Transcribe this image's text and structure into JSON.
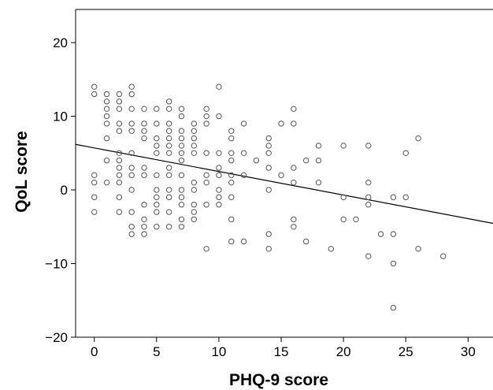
{
  "chart_data": {
    "type": "scatter",
    "xlabel": "PHQ-9 score",
    "ylabel": "QoL score",
    "xlim": [
      -1.5,
      32
    ],
    "ylim": [
      -20,
      24.5
    ],
    "xticks": [
      0,
      5,
      10,
      15,
      20,
      25,
      30
    ],
    "yticks": [
      -20,
      -10,
      0,
      10,
      20
    ],
    "xtick_labels": [
      "0",
      "5",
      "10",
      "15",
      "20",
      "25",
      "30"
    ],
    "ytick_labels": [
      "−20",
      "−10",
      "0",
      "10",
      "20"
    ],
    "grid": false,
    "legend": "none",
    "marker_color": "#555555",
    "line_color": "#000000",
    "fit_line": {
      "intercept": 5.7,
      "slope": -0.32
    },
    "points": [
      [
        0,
        14
      ],
      [
        0,
        13
      ],
      [
        0,
        2
      ],
      [
        0,
        1
      ],
      [
        0,
        -1
      ],
      [
        0,
        -3
      ],
      [
        1,
        13
      ],
      [
        1,
        12
      ],
      [
        1,
        11
      ],
      [
        1,
        10
      ],
      [
        1,
        9
      ],
      [
        1,
        7
      ],
      [
        1,
        4
      ],
      [
        1,
        1
      ],
      [
        2,
        13
      ],
      [
        2,
        12
      ],
      [
        2,
        11
      ],
      [
        2,
        9
      ],
      [
        2,
        8
      ],
      [
        2,
        5
      ],
      [
        2,
        4
      ],
      [
        2,
        3
      ],
      [
        2,
        2
      ],
      [
        2,
        1
      ],
      [
        2,
        -1
      ],
      [
        2,
        -3
      ],
      [
        3,
        14
      ],
      [
        3,
        13
      ],
      [
        3,
        11
      ],
      [
        3,
        9
      ],
      [
        3,
        8
      ],
      [
        3,
        5
      ],
      [
        3,
        3
      ],
      [
        3,
        2
      ],
      [
        3,
        0
      ],
      [
        3,
        -3
      ],
      [
        3,
        -5
      ],
      [
        3,
        -6
      ],
      [
        4,
        11
      ],
      [
        4,
        9
      ],
      [
        4,
        8
      ],
      [
        4,
        7
      ],
      [
        4,
        3
      ],
      [
        4,
        2
      ],
      [
        4,
        -2
      ],
      [
        4,
        -4
      ],
      [
        4,
        -5
      ],
      [
        4,
        -6
      ],
      [
        5,
        11
      ],
      [
        5,
        9
      ],
      [
        5,
        7
      ],
      [
        5,
        6
      ],
      [
        5,
        5
      ],
      [
        5,
        2
      ],
      [
        5,
        0
      ],
      [
        5,
        -1
      ],
      [
        5,
        -2
      ],
      [
        5,
        -3
      ],
      [
        5,
        -5
      ],
      [
        6,
        12
      ],
      [
        6,
        11
      ],
      [
        6,
        9
      ],
      [
        6,
        8
      ],
      [
        6,
        7
      ],
      [
        6,
        6
      ],
      [
        6,
        5
      ],
      [
        6,
        3
      ],
      [
        6,
        2
      ],
      [
        6,
        0
      ],
      [
        6,
        -1
      ],
      [
        6,
        -3
      ],
      [
        6,
        -5
      ],
      [
        7,
        11
      ],
      [
        7,
        10
      ],
      [
        7,
        8
      ],
      [
        7,
        7
      ],
      [
        7,
        6
      ],
      [
        7,
        5
      ],
      [
        7,
        4
      ],
      [
        7,
        2
      ],
      [
        7,
        0
      ],
      [
        7,
        -1
      ],
      [
        7,
        -2
      ],
      [
        7,
        -4
      ],
      [
        7,
        -5
      ],
      [
        8,
        9
      ],
      [
        8,
        8
      ],
      [
        8,
        7
      ],
      [
        8,
        6
      ],
      [
        8,
        5
      ],
      [
        8,
        1
      ],
      [
        8,
        0
      ],
      [
        8,
        -2
      ],
      [
        8,
        -3
      ],
      [
        8,
        -4
      ],
      [
        9,
        11
      ],
      [
        9,
        10
      ],
      [
        9,
        9
      ],
      [
        9,
        5
      ],
      [
        9,
        2
      ],
      [
        9,
        1
      ],
      [
        9,
        -2
      ],
      [
        9,
        -8
      ],
      [
        10,
        14
      ],
      [
        10,
        10
      ],
      [
        10,
        5
      ],
      [
        10,
        3
      ],
      [
        10,
        2
      ],
      [
        10,
        0
      ],
      [
        10,
        -1
      ],
      [
        10,
        -2
      ],
      [
        11,
        8
      ],
      [
        11,
        7
      ],
      [
        11,
        5
      ],
      [
        11,
        4
      ],
      [
        11,
        2
      ],
      [
        11,
        1
      ],
      [
        11,
        -1
      ],
      [
        11,
        -4
      ],
      [
        11,
        -7
      ],
      [
        12,
        9
      ],
      [
        12,
        5
      ],
      [
        12,
        2
      ],
      [
        12,
        -7
      ],
      [
        13,
        4
      ],
      [
        14,
        7
      ],
      [
        14,
        6
      ],
      [
        14,
        5
      ],
      [
        14,
        3
      ],
      [
        14,
        0
      ],
      [
        14,
        -6
      ],
      [
        14,
        -8
      ],
      [
        15,
        9
      ],
      [
        15,
        2
      ],
      [
        16,
        11
      ],
      [
        16,
        9
      ],
      [
        16,
        3
      ],
      [
        16,
        1
      ],
      [
        16,
        -4
      ],
      [
        16,
        -5
      ],
      [
        17,
        4
      ],
      [
        17,
        -7
      ],
      [
        18,
        6
      ],
      [
        18,
        4
      ],
      [
        18,
        1
      ],
      [
        19,
        -8
      ],
      [
        20,
        6
      ],
      [
        20,
        -1
      ],
      [
        20,
        -4
      ],
      [
        21,
        -4
      ],
      [
        22,
        6
      ],
      [
        22,
        1
      ],
      [
        22,
        -1
      ],
      [
        22,
        -2
      ],
      [
        22,
        -9
      ],
      [
        23,
        -6
      ],
      [
        24,
        -1
      ],
      [
        24,
        -6
      ],
      [
        24,
        -10
      ],
      [
        24,
        -16
      ],
      [
        25,
        5
      ],
      [
        25,
        -1
      ],
      [
        26,
        7
      ],
      [
        26,
        -8
      ],
      [
        28,
        -9
      ]
    ]
  }
}
